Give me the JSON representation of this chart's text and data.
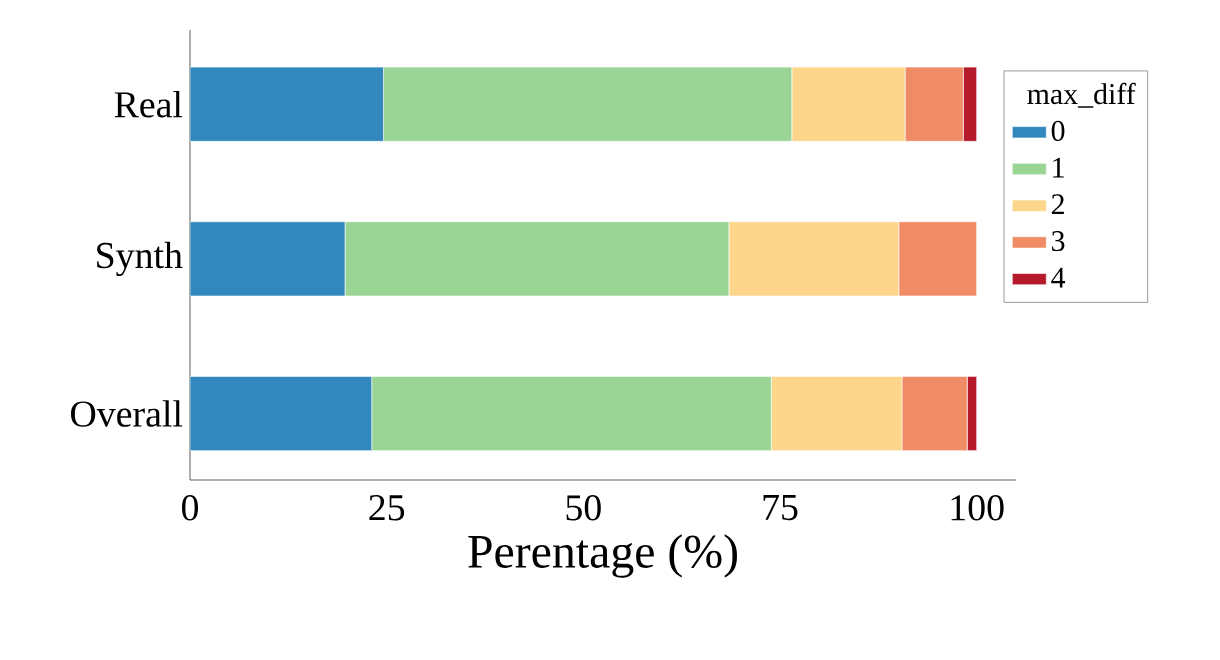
{
  "chart_data": {
    "type": "bar",
    "orientation": "horizontal",
    "stacked": true,
    "categories": [
      "Real",
      "Synth",
      "Overall"
    ],
    "xlabel": "Perentage (%)",
    "legend_title": "max_diff",
    "legend": "right",
    "xlim": [
      0,
      105
    ],
    "xticks": [
      0,
      25,
      50,
      75,
      100
    ],
    "series": [
      {
        "name": "0",
        "color": "#3288bd",
        "values": [
          24.6,
          19.7,
          23.1
        ]
      },
      {
        "name": "1",
        "color": "#9ad596",
        "values": [
          51.9,
          48.8,
          50.8
        ]
      },
      {
        "name": "2",
        "color": "#fdd68c",
        "values": [
          14.4,
          21.6,
          16.6
        ]
      },
      {
        "name": "3",
        "color": "#ef8c65",
        "values": [
          7.4,
          9.9,
          8.3
        ]
      },
      {
        "name": "4",
        "color": "#b41a2c",
        "values": [
          1.7,
          0,
          1.2
        ]
      }
    ]
  }
}
